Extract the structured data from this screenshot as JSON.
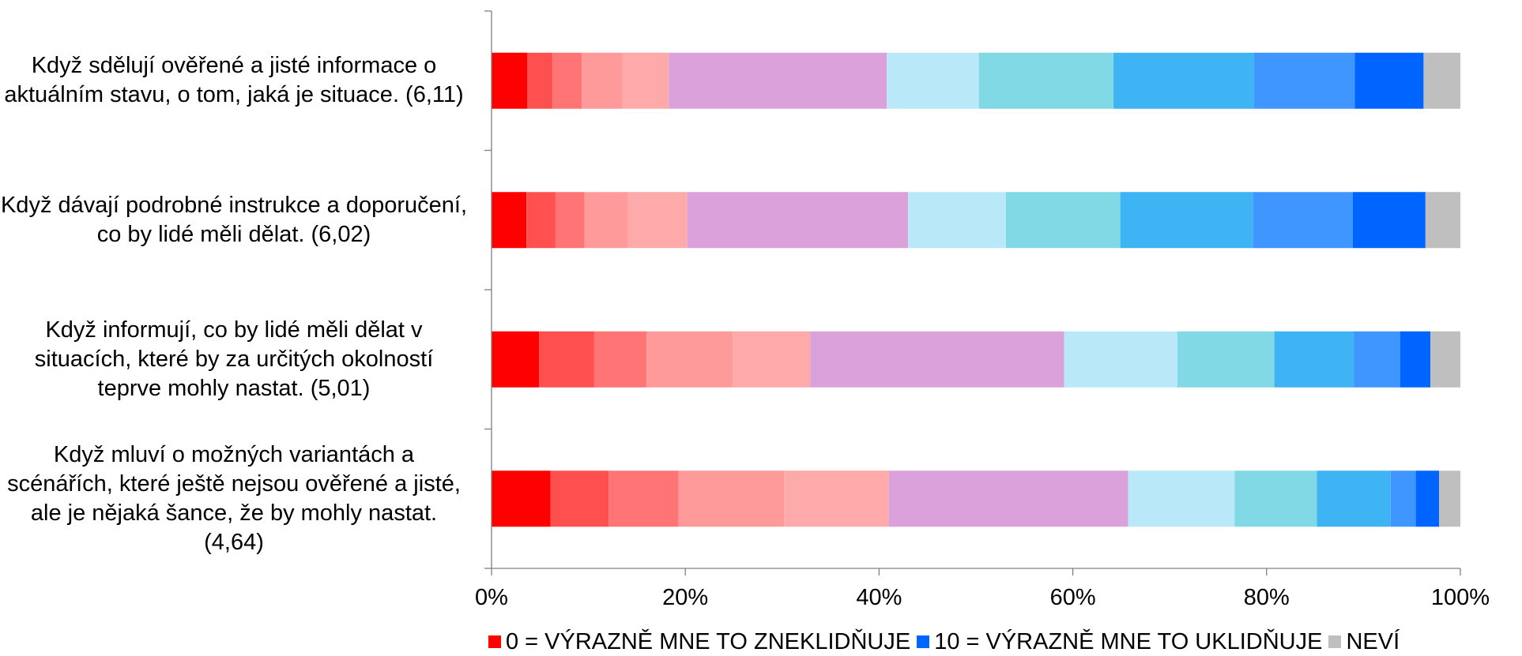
{
  "chart_data": {
    "type": "bar",
    "orientation": "horizontal",
    "stacked": "percent",
    "categories": [
      "Když sdělují ověřené a jisté informace o aktuálním stavu, o tom, jaká je situace. (6,11)",
      "Když dávají podrobné instrukce a doporučení, co by lidé měli dělat. (6,02)",
      "Když informují, co by lidé měli dělat v situacích, které by za určitých okolností teprve mohly nastat. (5,01)",
      "Když mluví o možných variantách a scénářích, které ještě nejsou ověřené a jisté, ale je nějaká šance, že by mohly nastat. (4,64)"
    ],
    "series": [
      {
        "name": "0 = VÝRAZNĚ MNE TO ZNEKLIDŇUJE",
        "color": "#ff0000",
        "values": [
          3.7,
          3.6,
          4.9,
          6.1
        ]
      },
      {
        "color": "#ff5050",
        "values": [
          2.6,
          3.0,
          5.7,
          6.0
        ]
      },
      {
        "color": "#ff7575",
        "values": [
          3.0,
          3.0,
          5.4,
          7.2
        ]
      },
      {
        "color": "#ff9a9a",
        "values": [
          4.2,
          4.5,
          8.9,
          10.9
        ]
      },
      {
        "color": "#ffaaaa",
        "values": [
          4.8,
          6.1,
          8.0,
          10.8
        ]
      },
      {
        "color": "#daa1db",
        "values": [
          22.5,
          22.8,
          26.2,
          24.7
        ]
      },
      {
        "color": "#b9e9f8",
        "values": [
          9.5,
          10.1,
          11.7,
          11.0
        ]
      },
      {
        "color": "#81d9e6",
        "values": [
          13.9,
          11.8,
          10.0,
          8.5
        ]
      },
      {
        "color": "#3eb4f5",
        "values": [
          14.5,
          13.7,
          8.2,
          7.6
        ]
      },
      {
        "color": "#3e96fe",
        "values": [
          10.4,
          10.3,
          4.8,
          2.6
        ]
      },
      {
        "name": "10 = VÝRAZNĚ MNE TO UKLIDŇUJE",
        "color": "#0064ff",
        "values": [
          7.1,
          7.5,
          3.1,
          2.4
        ]
      },
      {
        "name": "NEVÍ",
        "color": "#bfbfbf",
        "values": [
          3.8,
          3.6,
          3.1,
          2.2
        ]
      }
    ],
    "x_ticks": [
      "0%",
      "20%",
      "40%",
      "60%",
      "80%",
      "100%"
    ],
    "xlim": [
      0,
      100
    ],
    "grid": false,
    "legend_position": "bottom"
  }
}
